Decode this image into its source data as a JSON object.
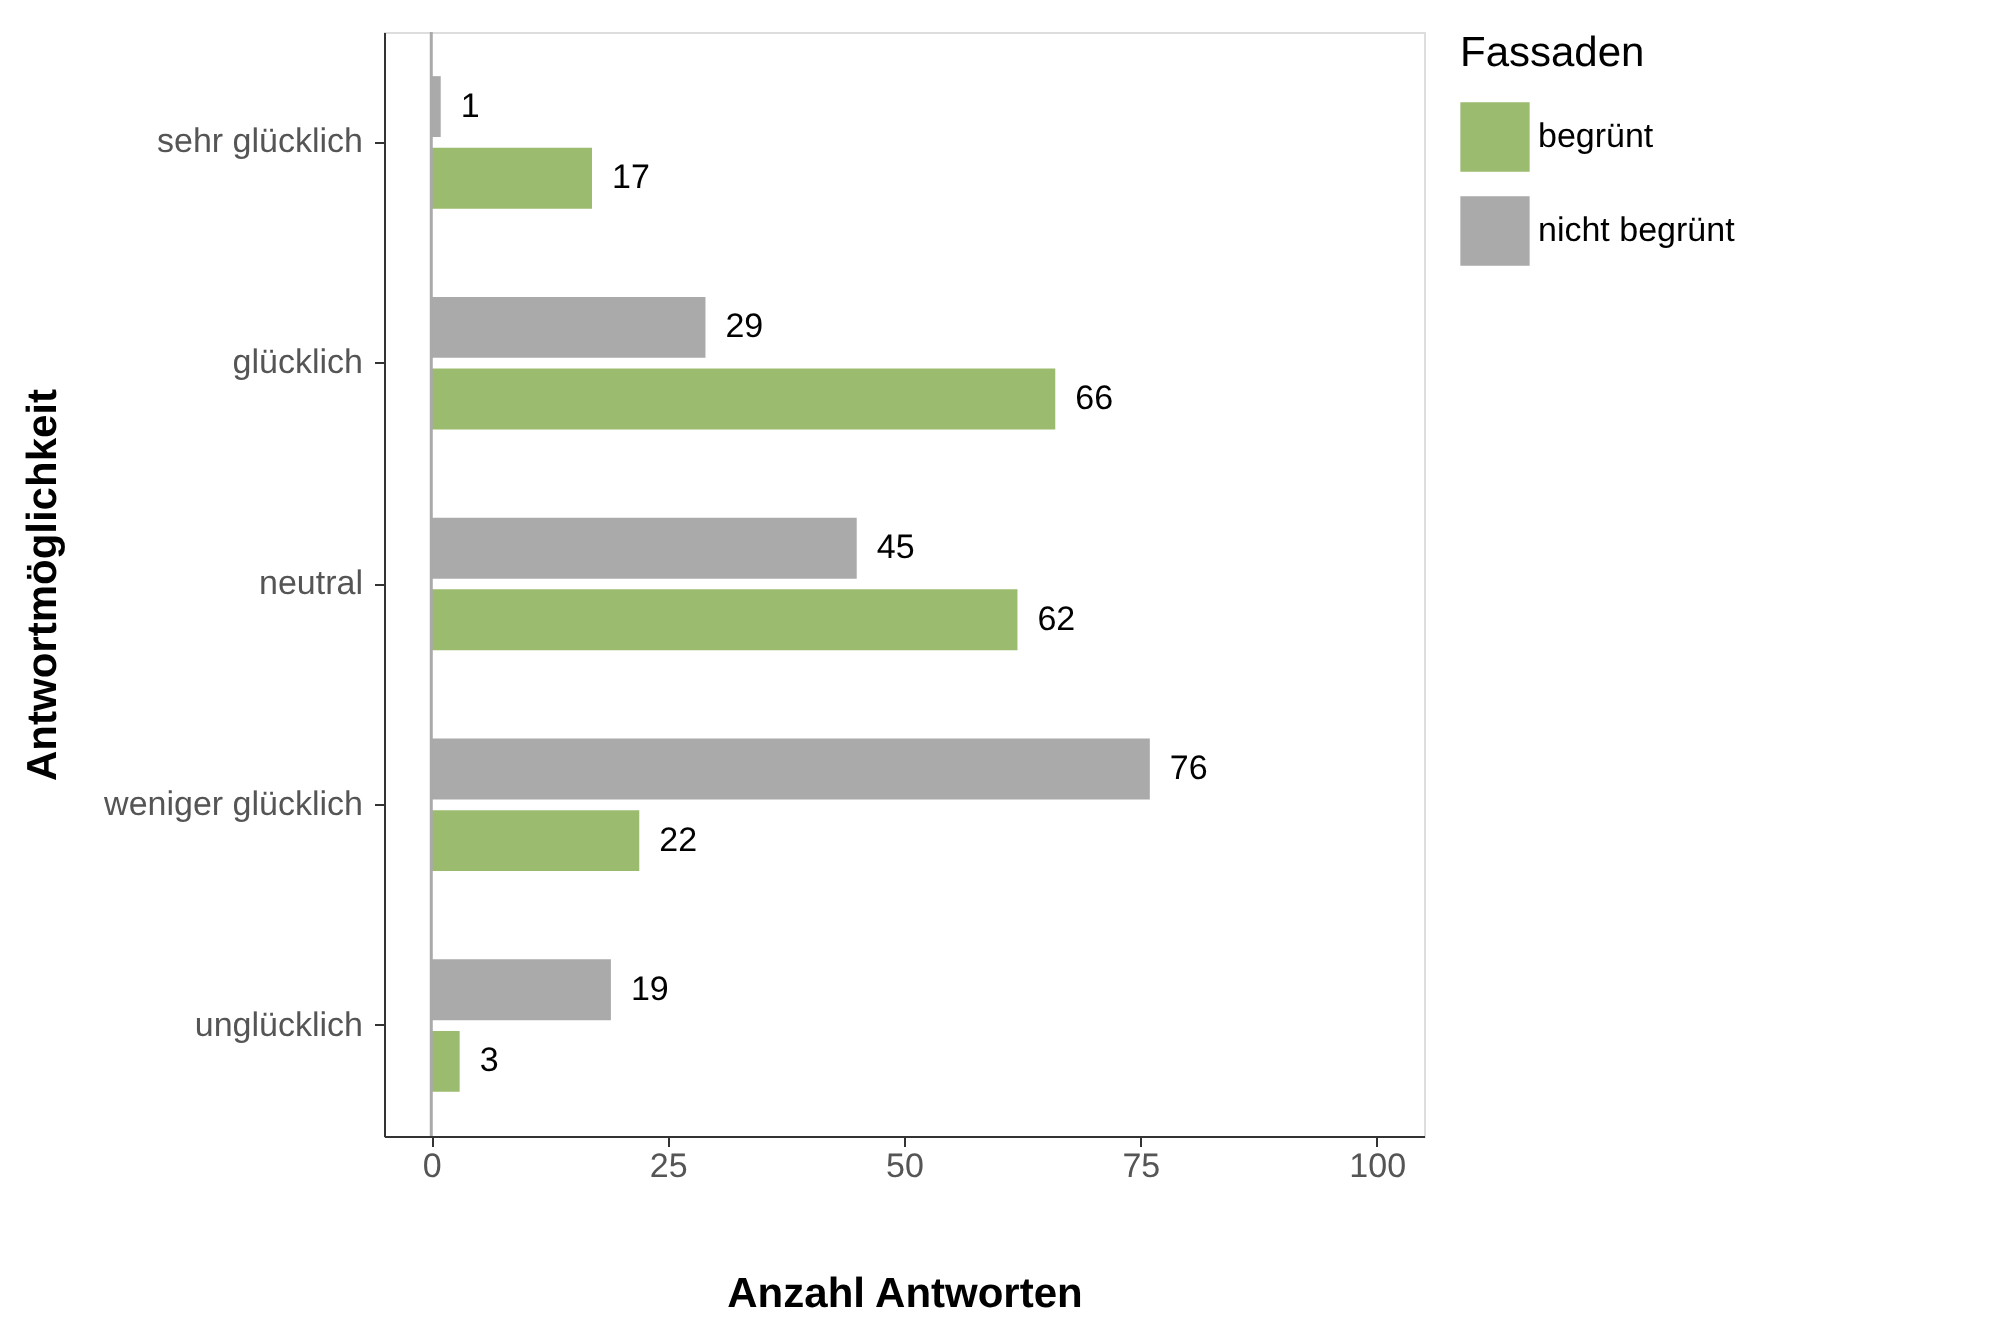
{
  "chart_data": {
    "type": "bar",
    "orientation": "horizontal",
    "xlabel": "Anzahl Antworten",
    "ylabel": "Antwortmöglichkeit",
    "legend_title": "Fassaden",
    "categories": [
      "sehr glücklich",
      "glücklich",
      "neutral",
      "weniger glücklich",
      "unglücklich"
    ],
    "series": [
      {
        "name": "begrünt",
        "color": "#9bbb6e",
        "values": [
          17,
          66,
          62,
          22,
          3
        ]
      },
      {
        "name": "nicht begrünt",
        "color": "#aaaaaa",
        "values": [
          1,
          29,
          45,
          76,
          19
        ]
      }
    ],
    "xlim": [
      -5,
      105
    ],
    "xticks": [
      0,
      25,
      50,
      75,
      100
    ],
    "data_labels": true,
    "legend": "right",
    "grid": false,
    "ref_lines": [
      {
        "axis": "x",
        "value": 0,
        "color": "#aaaaaa"
      }
    ]
  }
}
